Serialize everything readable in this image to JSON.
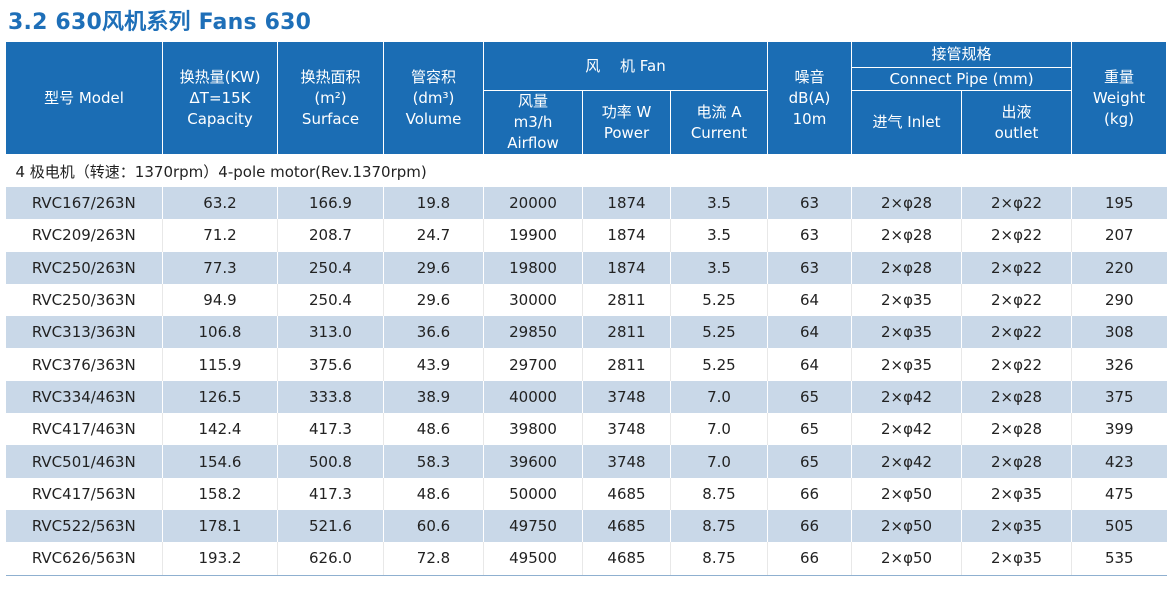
{
  "title": "3.2 630风机系列 Fans 630",
  "header": {
    "model": "型号 Model",
    "capacity_l1": "换热量(KW)",
    "capacity_l2": "ΔT=15K",
    "capacity_l3": "Capacity",
    "surface_l1": "换热面积",
    "surface_l2": "(m²)",
    "surface_l3": "Surface",
    "volume_l1": "管容积",
    "volume_l2": "(dm³)",
    "volume_l3": "Volume",
    "fan": "风　 机 Fan",
    "airflow_l1": "风量",
    "airflow_l2": "m3/h",
    "airflow_l3": "Airflow",
    "power_l1": "功率 W",
    "power_l2": "Power",
    "current_l1": "电流 A",
    "current_l2": "Current",
    "noise_l1": "噪音",
    "noise_l2": "dB(A)",
    "noise_l3": "10m",
    "pipe_l1": "接管规格",
    "pipe_l2": "Connect Pipe (mm)",
    "inlet": "进气 Inlet",
    "outlet_l1": "出液",
    "outlet_l2": "outlet",
    "weight_l1": "重量",
    "weight_l2": "Weight",
    "weight_l3": "(kg)"
  },
  "group_label": "4 极电机（转速：1370rpm）4-pole motor(Rev.1370rpm)",
  "rows": [
    [
      "RVC167/263N",
      "63.2",
      "166.9",
      "19.8",
      "20000",
      "1874",
      "3.5",
      "63",
      "2×φ28",
      "2×φ22",
      "195"
    ],
    [
      "RVC209/263N",
      "71.2",
      "208.7",
      "24.7",
      "19900",
      "1874",
      "3.5",
      "63",
      "2×φ28",
      "2×φ22",
      "207"
    ],
    [
      "RVC250/263N",
      "77.3",
      "250.4",
      "29.6",
      "19800",
      "1874",
      "3.5",
      "63",
      "2×φ28",
      "2×φ22",
      "220"
    ],
    [
      "RVC250/363N",
      "94.9",
      "250.4",
      "29.6",
      "30000",
      "2811",
      "5.25",
      "64",
      "2×φ35",
      "2×φ22",
      "290"
    ],
    [
      "RVC313/363N",
      "106.8",
      "313.0",
      "36.6",
      "29850",
      "2811",
      "5.25",
      "64",
      "2×φ35",
      "2×φ22",
      "308"
    ],
    [
      "RVC376/363N",
      "115.9",
      "375.6",
      "43.9",
      "29700",
      "2811",
      "5.25",
      "64",
      "2×φ35",
      "2×φ22",
      "326"
    ],
    [
      "RVC334/463N",
      "126.5",
      "333.8",
      "38.9",
      "40000",
      "3748",
      "7.0",
      "65",
      "2×φ42",
      "2×φ28",
      "375"
    ],
    [
      "RVC417/463N",
      "142.4",
      "417.3",
      "48.6",
      "39800",
      "3748",
      "7.0",
      "65",
      "2×φ42",
      "2×φ28",
      "399"
    ],
    [
      "RVC501/463N",
      "154.6",
      "500.8",
      "58.3",
      "39600",
      "3748",
      "7.0",
      "65",
      "2×φ42",
      "2×φ28",
      "423"
    ],
    [
      "RVC417/563N",
      "158.2",
      "417.3",
      "48.6",
      "50000",
      "4685",
      "8.75",
      "66",
      "2×φ50",
      "2×φ35",
      "475"
    ],
    [
      "RVC522/563N",
      "178.1",
      "521.6",
      "60.6",
      "49750",
      "4685",
      "8.75",
      "66",
      "2×φ50",
      "2×φ35",
      "505"
    ],
    [
      "RVC626/563N",
      "193.2",
      "626.0",
      "72.8",
      "49500",
      "4685",
      "8.75",
      "66",
      "2×φ50",
      "2×φ35",
      "535"
    ]
  ]
}
